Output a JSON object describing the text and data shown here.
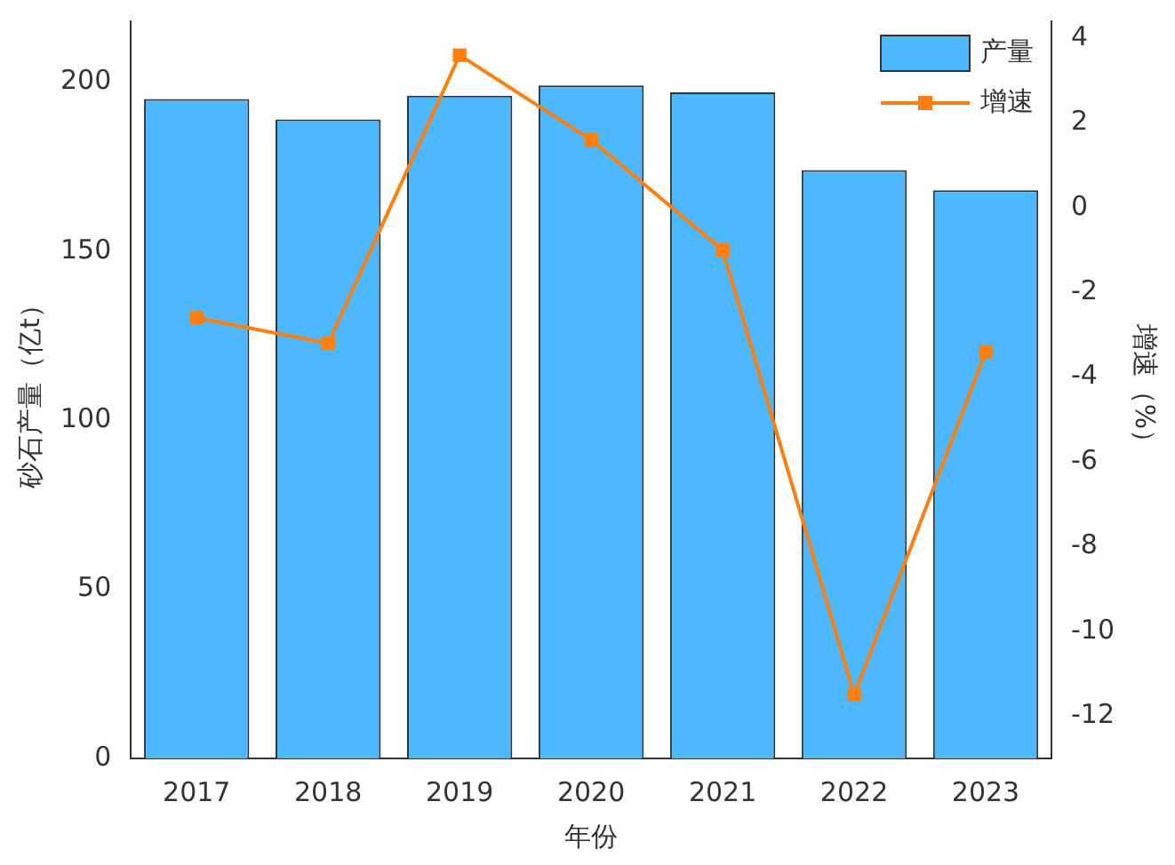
{
  "chart_data": {
    "type": "bar",
    "xlabel": "年份",
    "ylabel": "砂石产量（亿t）",
    "y2label": "增速（%）",
    "categories": [
      "2017",
      "2018",
      "2019",
      "2020",
      "2021",
      "2022",
      "2023"
    ],
    "series": [
      {
        "name": "产量",
        "color": "#4db8ff",
        "values": [
          195,
          189,
          196,
          199,
          197,
          174,
          168
        ]
      },
      {
        "name": "增速",
        "type": "line",
        "axis": "y2",
        "color": "#ff7f0e",
        "marker": "square",
        "values": [
          -2.6,
          -3.2,
          3.6,
          1.6,
          -1.0,
          -11.5,
          -3.4
        ]
      }
    ],
    "ylim": [
      0,
      218
    ],
    "yticks": [
      0,
      50,
      100,
      150,
      200
    ],
    "y2lim": [
      -13,
      4.4
    ],
    "y2ticks": [
      -12,
      -10,
      -8,
      -6,
      -4,
      -2,
      0,
      2,
      4
    ],
    "legend": "top right",
    "grid": false
  }
}
